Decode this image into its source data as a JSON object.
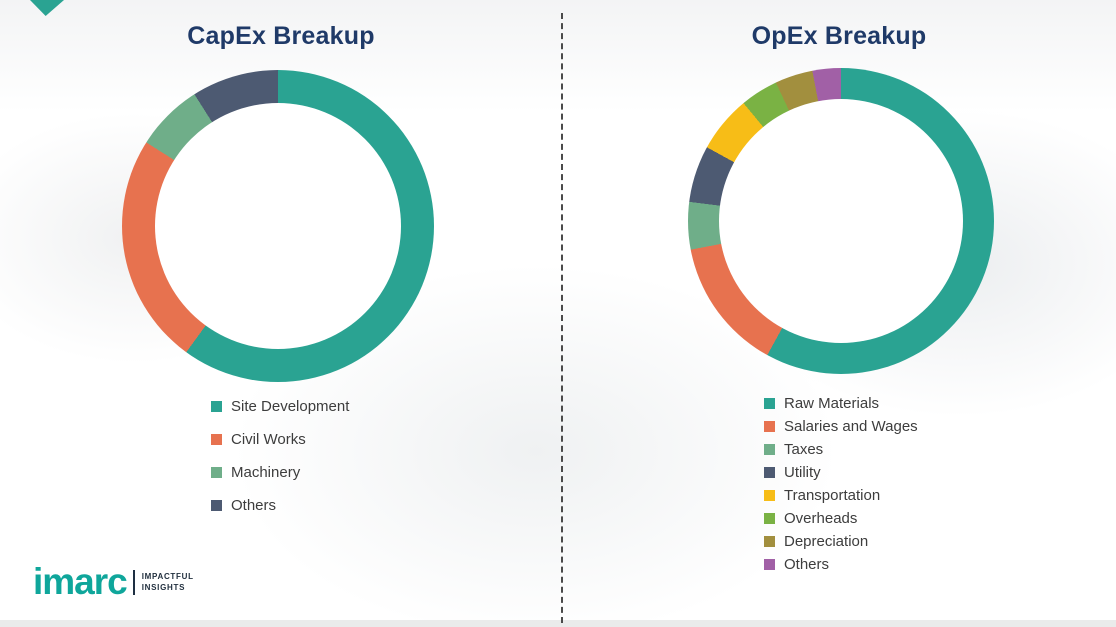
{
  "chart_data": [
    {
      "type": "pie",
      "variant": "donut",
      "title": "CapEx Breakup",
      "values_unit": "%",
      "values_note": "approximate share estimated from arc angles; no numeric labels shown in image",
      "legend_position": "bottom",
      "start_angle_deg": 0,
      "direction": "clockwise",
      "segments": [
        {
          "label": "Site Development",
          "value": 60,
          "color": "#2AA392"
        },
        {
          "label": "Civil Works",
          "value": 24,
          "color": "#E7724F"
        },
        {
          "label": "Machinery",
          "value": 7,
          "color": "#6FAE89"
        },
        {
          "label": "Others",
          "value": 9,
          "color": "#4D5A72"
        }
      ]
    },
    {
      "type": "pie",
      "variant": "donut",
      "title": "OpEx Breakup",
      "values_unit": "%",
      "values_note": "approximate share estimated from arc angles; no numeric labels shown in image",
      "legend_position": "bottom",
      "start_angle_deg": 0,
      "direction": "clockwise",
      "segments": [
        {
          "label": "Raw Materials",
          "value": 58,
          "color": "#2AA392"
        },
        {
          "label": "Salaries and Wages",
          "value": 14,
          "color": "#E7724F"
        },
        {
          "label": "Taxes",
          "value": 5,
          "color": "#6FAE89"
        },
        {
          "label": "Utility",
          "value": 6,
          "color": "#4D5A72"
        },
        {
          "label": "Transportation",
          "value": 6,
          "color": "#F7BD17"
        },
        {
          "label": "Overheads",
          "value": 4,
          "color": "#7AB244"
        },
        {
          "label": "Depreciation",
          "value": 4,
          "color": "#A28F3E"
        },
        {
          "label": "Others",
          "value": 3,
          "color": "#A160A6"
        }
      ]
    }
  ],
  "logo": {
    "brand": "imarc",
    "tagline_line1": "IMPACTFUL",
    "tagline_line2": "INSIGHTS"
  }
}
